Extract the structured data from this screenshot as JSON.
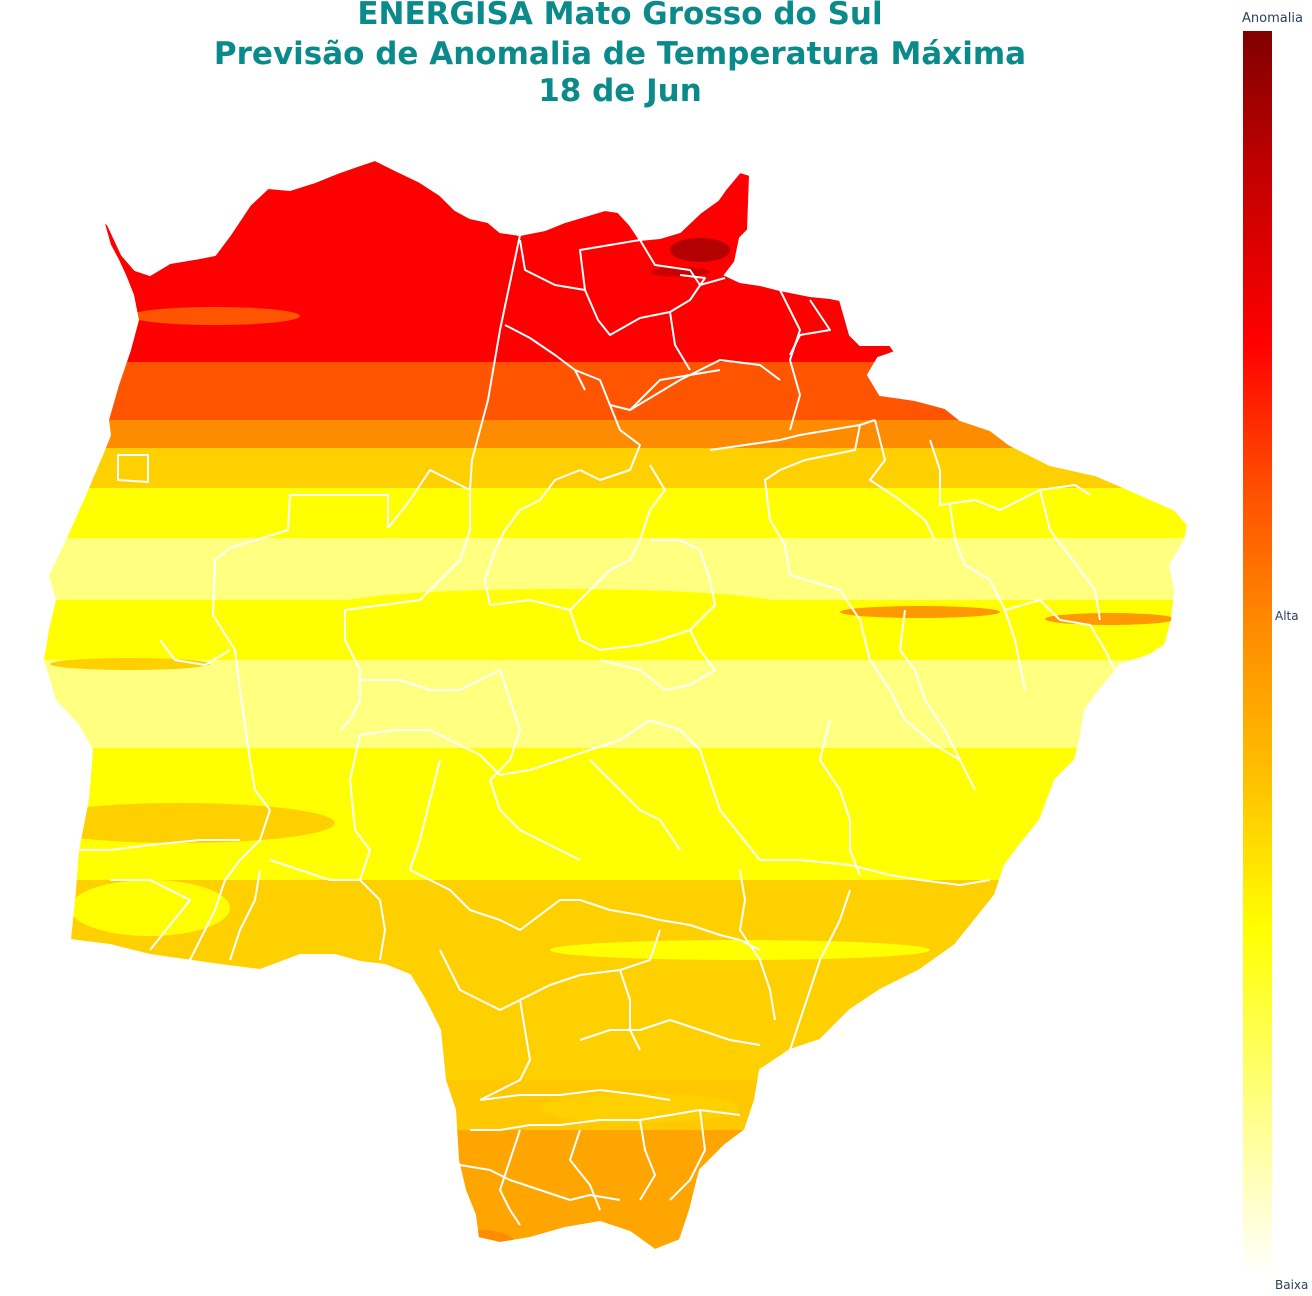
{
  "title": {
    "line1": "ENERGISA Mato Grosso do Sul",
    "line2": "Previsão de Anomalia de Temperatura Máxima",
    "line3": "18 de Jun"
  },
  "colorbar": {
    "title": "Anomalia",
    "ticks": {
      "high": "Alta",
      "low": "Baixa"
    },
    "colors": [
      "#800000",
      "#c00000",
      "#ff0000",
      "#ff5000",
      "#ff8c00",
      "#ffc000",
      "#ffff00",
      "#ffff80",
      "#ffffff"
    ]
  },
  "map": {
    "region": "Mato Grosso do Sul",
    "band_colors": {
      "deep_red": "#b30000",
      "red": "#ff0000",
      "red_orange": "#ff5500",
      "orange": "#ffa500",
      "gold": "#ffd000",
      "yellow": "#ffff00",
      "light_yellow": "#ffff80"
    },
    "border_color": "#ffffff"
  }
}
